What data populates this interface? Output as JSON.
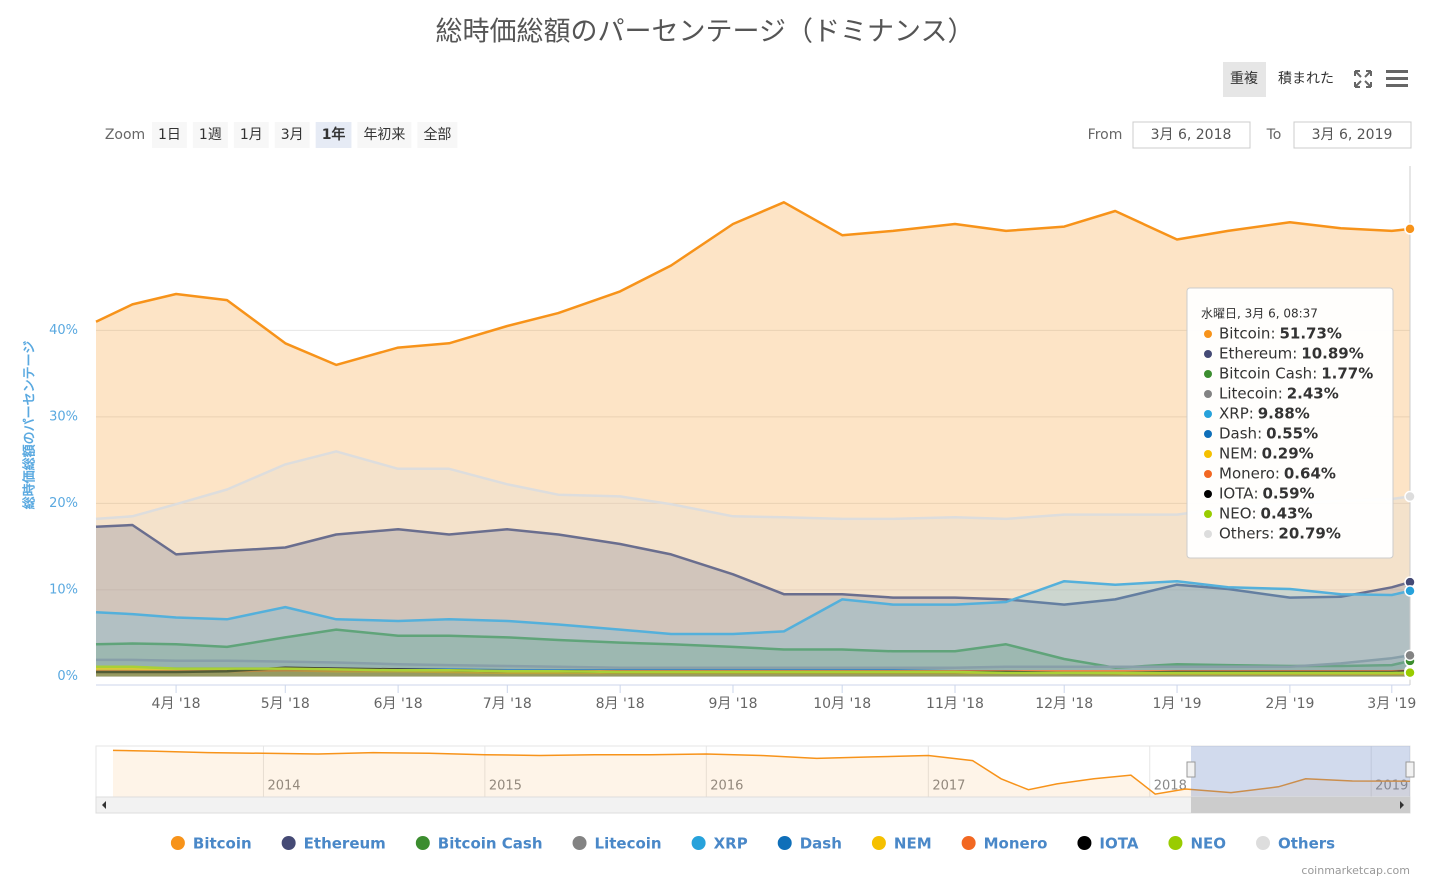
{
  "chart_data": {
    "type": "area",
    "title": "総時価総額のパーセンテージ（ドミナンス）",
    "y_label": "総時価総額のパーセンテージ",
    "x": [
      "2018-03-10",
      "2018-03-20",
      "2018-04-01",
      "2018-04-15",
      "2018-05-01",
      "2018-05-15",
      "2018-06-01",
      "2018-06-15",
      "2018-07-01",
      "2018-07-15",
      "2018-08-01",
      "2018-08-15",
      "2018-09-01",
      "2018-09-15",
      "2018-10-01",
      "2018-10-15",
      "2018-11-01",
      "2018-11-15",
      "2018-12-01",
      "2018-12-15",
      "2019-01-01",
      "2019-01-15",
      "2019-02-01",
      "2019-02-15",
      "2019-03-01",
      "2019-03-06"
    ],
    "xlim": [
      "2018-03-10",
      "2019-03-06"
    ],
    "xticks": [
      {
        "value": "2018-04-01",
        "label": "4月 '18"
      },
      {
        "value": "2018-05-01",
        "label": "5月 '18"
      },
      {
        "value": "2018-06-01",
        "label": "6月 '18"
      },
      {
        "value": "2018-07-01",
        "label": "7月 '18"
      },
      {
        "value": "2018-08-01",
        "label": "8月 '18"
      },
      {
        "value": "2018-09-01",
        "label": "9月 '18"
      },
      {
        "value": "2018-10-01",
        "label": "10月 '18"
      },
      {
        "value": "2018-11-01",
        "label": "11月 '18"
      },
      {
        "value": "2018-12-01",
        "label": "12月 '18"
      },
      {
        "value": "2019-01-01",
        "label": "1月 '19"
      },
      {
        "value": "2019-02-01",
        "label": "2月 '19"
      },
      {
        "value": "2019-03-01",
        "label": "3月 '19"
      }
    ],
    "ylim": [
      -1,
      59
    ],
    "yticks": [
      {
        "value": 0,
        "label": "0%"
      },
      {
        "value": 10,
        "label": "10%"
      },
      {
        "value": 20,
        "label": "20%"
      },
      {
        "value": 30,
        "label": "30%"
      },
      {
        "value": 40,
        "label": "40%"
      }
    ],
    "grid": true,
    "series": [
      {
        "name": "Bitcoin",
        "color": "#f7931a",
        "values": [
          41.0,
          43.0,
          44.2,
          43.5,
          38.5,
          36.0,
          38.0,
          38.5,
          40.5,
          42.0,
          44.5,
          47.5,
          52.3,
          54.8,
          51.0,
          51.5,
          52.3,
          51.5,
          52.0,
          53.8,
          50.5,
          51.5,
          52.5,
          51.8,
          51.5,
          51.73
        ]
      },
      {
        "name": "Ethereum",
        "color": "#454a75",
        "values": [
          17.3,
          17.5,
          14.1,
          14.5,
          14.9,
          16.4,
          17.0,
          16.4,
          17.0,
          16.4,
          15.3,
          14.1,
          11.8,
          9.5,
          9.5,
          9.1,
          9.1,
          8.9,
          8.3,
          8.9,
          10.6,
          10.1,
          9.1,
          9.2,
          10.3,
          10.89
        ]
      },
      {
        "name": "Bitcoin Cash",
        "color": "#3c8d2f",
        "values": [
          3.7,
          3.8,
          3.7,
          3.4,
          4.5,
          5.4,
          4.7,
          4.7,
          4.5,
          4.2,
          3.9,
          3.7,
          3.4,
          3.1,
          3.1,
          2.9,
          2.9,
          3.7,
          2.0,
          1.0,
          1.4,
          1.3,
          1.2,
          1.2,
          1.3,
          1.77
        ]
      },
      {
        "name": "Litecoin",
        "color": "#838383",
        "values": [
          1.9,
          1.9,
          1.8,
          1.8,
          1.7,
          1.6,
          1.4,
          1.3,
          1.2,
          1.1,
          1.0,
          1.0,
          1.0,
          1.0,
          1.0,
          1.0,
          1.0,
          1.1,
          1.1,
          1.1,
          1.1,
          1.1,
          1.1,
          1.5,
          2.1,
          2.43
        ]
      },
      {
        "name": "XRP",
        "color": "#27a2db",
        "values": [
          7.4,
          7.2,
          6.8,
          6.6,
          8.0,
          6.6,
          6.4,
          6.6,
          6.4,
          6.0,
          5.4,
          4.9,
          4.9,
          5.2,
          8.9,
          8.3,
          8.3,
          8.6,
          11.0,
          10.6,
          11.0,
          10.3,
          10.1,
          9.5,
          9.4,
          9.88
        ]
      },
      {
        "name": "Dash",
        "color": "#0f6fb9",
        "values": [
          0.9,
          0.9,
          0.9,
          0.9,
          0.9,
          0.8,
          0.8,
          0.8,
          0.7,
          0.7,
          0.7,
          0.7,
          0.7,
          0.7,
          0.7,
          0.7,
          0.6,
          0.6,
          0.5,
          0.5,
          0.5,
          0.5,
          0.5,
          0.5,
          0.5,
          0.55
        ]
      },
      {
        "name": "NEM",
        "color": "#f5c000",
        "values": [
          0.9,
          0.9,
          0.8,
          0.8,
          0.7,
          0.6,
          0.6,
          0.5,
          0.4,
          0.4,
          0.4,
          0.4,
          0.4,
          0.4,
          0.4,
          0.4,
          0.4,
          0.4,
          0.4,
          0.3,
          0.3,
          0.3,
          0.3,
          0.3,
          0.3,
          0.29
        ]
      },
      {
        "name": "Monero",
        "color": "#f26822",
        "values": [
          0.6,
          0.6,
          0.6,
          0.6,
          0.7,
          0.7,
          0.7,
          0.7,
          0.6,
          0.6,
          0.6,
          0.6,
          0.6,
          0.6,
          0.6,
          0.6,
          0.6,
          0.6,
          0.6,
          0.6,
          0.6,
          0.6,
          0.6,
          0.6,
          0.6,
          0.64
        ]
      },
      {
        "name": "IOTA",
        "color": "#000000",
        "values": [
          0.5,
          0.5,
          0.5,
          0.6,
          1.0,
          0.9,
          0.8,
          0.7,
          0.6,
          0.6,
          0.5,
          0.5,
          0.5,
          0.5,
          0.5,
          0.5,
          0.5,
          0.5,
          0.4,
          0.4,
          0.5,
          0.5,
          0.5,
          0.5,
          0.5,
          0.59
        ]
      },
      {
        "name": "NEO",
        "color": "#99cc00",
        "values": [
          1.1,
          1.1,
          0.9,
          0.9,
          0.9,
          0.8,
          0.7,
          0.7,
          0.6,
          0.6,
          0.5,
          0.5,
          0.5,
          0.5,
          0.5,
          0.5,
          0.5,
          0.4,
          0.4,
          0.4,
          0.4,
          0.4,
          0.4,
          0.4,
          0.4,
          0.43
        ]
      },
      {
        "name": "Others",
        "color": "#dddddd",
        "values": [
          18.2,
          18.5,
          19.9,
          21.6,
          24.5,
          26.0,
          24.0,
          24.0,
          22.2,
          21.0,
          20.8,
          19.9,
          18.5,
          18.4,
          18.2,
          18.2,
          18.4,
          18.2,
          18.7,
          18.7,
          18.7,
          19.5,
          20.0,
          20.3,
          20.5,
          20.79
        ]
      }
    ],
    "tooltip": {
      "title": "水曜日, 3月 6, 08:37",
      "labels": [
        "51.73%",
        "10.89%",
        "1.77%",
        "2.43%",
        "9.88%",
        "0.55%",
        "0.29%",
        "0.64%",
        "0.59%",
        "0.43%",
        "20.79%"
      ]
    },
    "navigator": {
      "x": [
        "2013-04-28",
        "2013-07-01",
        "2013-10-01",
        "2014-01-01",
        "2014-04-01",
        "2014-07-01",
        "2014-10-01",
        "2015-01-01",
        "2015-04-01",
        "2015-07-01",
        "2015-10-01",
        "2016-01-01",
        "2016-04-01",
        "2016-07-01",
        "2016-10-01",
        "2017-01-01",
        "2017-03-15",
        "2017-05-01",
        "2017-06-15",
        "2017-08-01",
        "2017-10-01",
        "2017-12-01",
        "2018-01-10",
        "2018-03-01",
        "2018-05-15",
        "2018-08-01",
        "2018-09-15",
        "2018-12-01",
        "2019-03-06"
      ],
      "values": [
        94,
        93,
        91,
        90,
        89,
        91,
        90,
        88,
        87,
        88,
        88,
        89,
        87,
        83,
        85,
        87,
        80,
        55,
        40,
        48,
        55,
        60,
        34,
        41,
        36,
        44,
        55,
        52,
        51.73
      ],
      "xlim": [
        "2013-04-28",
        "2019-03-06"
      ],
      "ylim": [
        30,
        100
      ],
      "xticks": [
        {
          "value": "2014-01-01",
          "label": "2014"
        },
        {
          "value": "2015-01-01",
          "label": "2015"
        },
        {
          "value": "2016-01-01",
          "label": "2016"
        },
        {
          "value": "2017-01-01",
          "label": "2017"
        },
        {
          "value": "2018-01-01",
          "label": "2018"
        },
        {
          "value": "2019-01-01",
          "label": "2019"
        }
      ]
    }
  },
  "ui": {
    "modes": [
      "重複",
      "積まれた"
    ],
    "zoom_label": "Zoom",
    "zoom": [
      "1日",
      "1週",
      "1月",
      "3月",
      "1年",
      "年初来",
      "全部"
    ],
    "from_label": "From",
    "from": "3月 6, 2018",
    "to_label": "To",
    "to": "3月 6, 2019",
    "credit": "coinmarketcap.com"
  }
}
